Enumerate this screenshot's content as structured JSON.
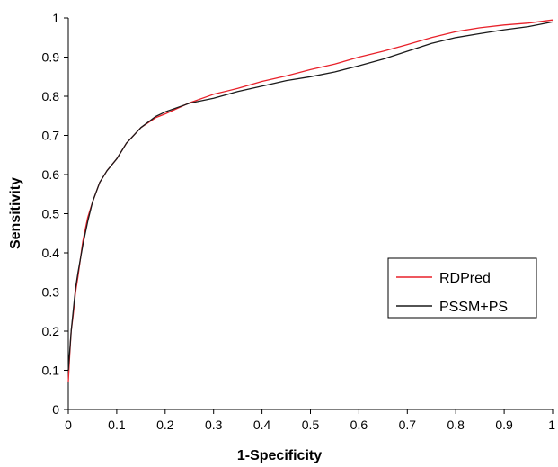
{
  "chart_data": {
    "type": "line",
    "title": "",
    "xlabel": "1-Specificity",
    "ylabel": "Sensitivity",
    "xlim": [
      0,
      1
    ],
    "ylim": [
      0,
      1
    ],
    "xticks": [
      "0",
      "0.1",
      "0.2",
      "0.3",
      "0.4",
      "0.5",
      "0.6",
      "0.7",
      "0.8",
      "0.9",
      "1"
    ],
    "yticks": [
      "0",
      "0.1",
      "0.2",
      "0.3",
      "0.4",
      "0.5",
      "0.6",
      "0.7",
      "0.8",
      "0.9",
      "1"
    ],
    "grid": false,
    "legend_position": "lower-right",
    "series": [
      {
        "name": "RDPred",
        "color": "#e8212a",
        "x": [
          0,
          0.003,
          0.006,
          0.01,
          0.015,
          0.02,
          0.03,
          0.04,
          0.05,
          0.065,
          0.08,
          0.1,
          0.12,
          0.15,
          0.18,
          0.2,
          0.25,
          0.3,
          0.35,
          0.4,
          0.45,
          0.5,
          0.55,
          0.6,
          0.65,
          0.7,
          0.75,
          0.8,
          0.85,
          0.9,
          0.95,
          1
        ],
        "y": [
          0.07,
          0.14,
          0.2,
          0.24,
          0.3,
          0.34,
          0.43,
          0.49,
          0.53,
          0.58,
          0.61,
          0.64,
          0.68,
          0.72,
          0.745,
          0.755,
          0.783,
          0.805,
          0.82,
          0.838,
          0.852,
          0.868,
          0.882,
          0.9,
          0.915,
          0.932,
          0.95,
          0.965,
          0.975,
          0.982,
          0.987,
          0.995
        ]
      },
      {
        "name": "PSSM+PS",
        "color": "#1a1a1a",
        "x": [
          0,
          0.003,
          0.006,
          0.01,
          0.015,
          0.02,
          0.03,
          0.04,
          0.05,
          0.065,
          0.08,
          0.1,
          0.12,
          0.15,
          0.18,
          0.2,
          0.25,
          0.3,
          0.35,
          0.4,
          0.45,
          0.5,
          0.55,
          0.6,
          0.65,
          0.7,
          0.75,
          0.8,
          0.85,
          0.9,
          0.95,
          1
        ],
        "y": [
          0.1,
          0.15,
          0.2,
          0.25,
          0.31,
          0.35,
          0.42,
          0.48,
          0.53,
          0.58,
          0.61,
          0.64,
          0.68,
          0.72,
          0.748,
          0.76,
          0.782,
          0.795,
          0.812,
          0.826,
          0.84,
          0.85,
          0.862,
          0.878,
          0.895,
          0.915,
          0.935,
          0.95,
          0.96,
          0.97,
          0.978,
          0.99
        ]
      }
    ]
  }
}
